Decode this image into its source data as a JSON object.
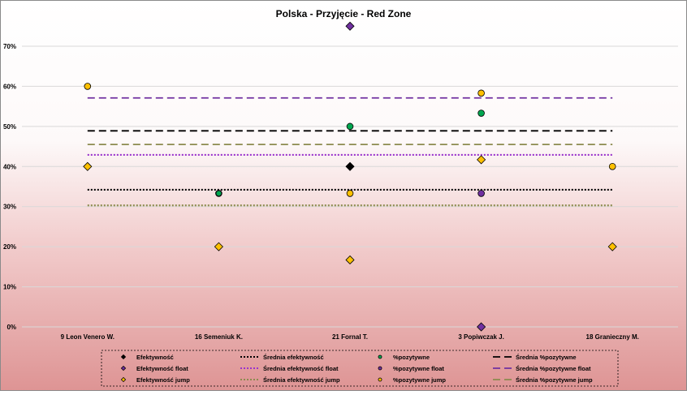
{
  "chart_data": {
    "type": "scatter",
    "title": "Polska - Przyjęcie - Red Zone",
    "categories": [
      "9 Leon Venero W.",
      "16 Semeniuk K.",
      "21 Fornal T.",
      "3 Popiwczak J.",
      "18 Granieczny M."
    ],
    "ylim": [
      0,
      70
    ],
    "yticks": [
      0,
      10,
      20,
      30,
      40,
      50,
      60,
      70
    ],
    "ytick_labels": [
      "0%",
      "10%",
      "20%",
      "30%",
      "40%",
      "50%",
      "60%",
      "70%"
    ],
    "grid": "horizontal",
    "legend_position": "bottom",
    "series": [
      {
        "name": "Efektywność",
        "kind": "marker",
        "marker": "diamond",
        "color": "#000000",
        "values": [
          null,
          null,
          40,
          null,
          null
        ]
      },
      {
        "name": "Średnia efektywność",
        "kind": "line",
        "dash": "dotted",
        "color": "#000000",
        "value": 34.2
      },
      {
        "name": "%pozytywne",
        "kind": "marker",
        "marker": "circle",
        "color": "#00A650",
        "values": [
          null,
          null,
          50,
          53.3,
          null
        ]
      },
      {
        "name": "Średnia %pozytywne",
        "kind": "line",
        "dash": "dashed",
        "color": "#000000",
        "value": 48.9
      },
      {
        "name": "Efektywność float",
        "kind": "marker",
        "marker": "diamond",
        "color": "#7030A0",
        "values": [
          null,
          null,
          75,
          0,
          null
        ]
      },
      {
        "name": "Średnia efektywność float",
        "kind": "line",
        "dash": "dotted",
        "color": "#9933CC",
        "value": 42.9
      },
      {
        "name": "%pozytywne float",
        "kind": "marker",
        "marker": "circle",
        "color": "#7030A0",
        "values": [
          null,
          33.3,
          null,
          33.3,
          null
        ]
      },
      {
        "name": "Średnia %pozytywne float",
        "kind": "line",
        "dash": "dashed",
        "color": "#7030A0",
        "value": 57.1
      },
      {
        "name": "Efektywność jump",
        "kind": "marker",
        "marker": "diamond",
        "color": "#FFC000",
        "values": [
          40,
          20,
          16.7,
          41.7,
          20
        ]
      },
      {
        "name": "Średnia efektywność jump",
        "kind": "line",
        "dash": "dotted",
        "color": "#8B8B4E",
        "value": 30.3
      },
      {
        "name": "%pozytywne jump",
        "kind": "marker",
        "marker": "circle",
        "color": "#FFC000",
        "values": [
          60,
          null,
          33.3,
          58.3,
          40
        ]
      },
      {
        "name": "Średnia %pozytywne jump",
        "kind": "line",
        "dash": "dashed",
        "color": "#8B8B4E",
        "value": 45.5
      }
    ],
    "overlaid_markers": [
      {
        "series": "%pozytywne",
        "marker": "circle",
        "color": "#00A650",
        "category": "16 Semeniuk K.",
        "value": 33.3
      }
    ]
  }
}
